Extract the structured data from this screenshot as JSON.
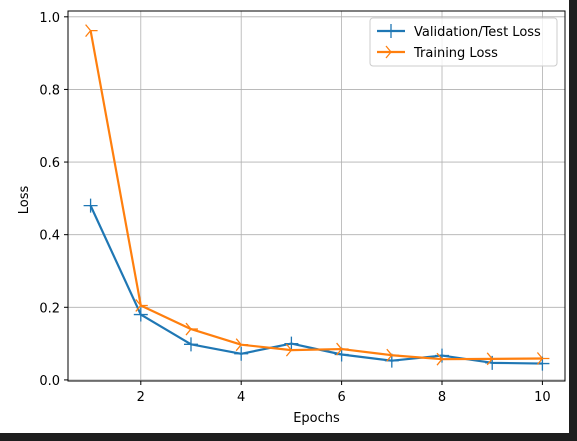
{
  "chart_data": {
    "type": "line",
    "xlabel": "Epochs",
    "ylabel": "Loss",
    "xlim": [
      0.55,
      10.45
    ],
    "ylim": [
      -0.003,
      1.016
    ],
    "x": [
      1,
      2,
      3,
      4,
      5,
      6,
      7,
      8,
      9,
      10
    ],
    "xticks": [
      "2",
      "4",
      "6",
      "8",
      "10"
    ],
    "yticks": [
      "0.0",
      "0.2",
      "0.4",
      "0.6",
      "0.8",
      "1.0"
    ],
    "grid": true,
    "legend_position": "top-right",
    "series": [
      {
        "name": "Validation/Test Loss",
        "color": "#1f77b4",
        "marker": "plus",
        "values": [
          0.48,
          0.18,
          0.098,
          0.072,
          0.1,
          0.07,
          0.053,
          0.067,
          0.047,
          0.045
        ]
      },
      {
        "name": "Training Loss",
        "color": "#ff7f0e",
        "marker": "tri_right",
        "values": [
          0.962,
          0.205,
          0.14,
          0.097,
          0.082,
          0.085,
          0.068,
          0.057,
          0.058,
          0.059
        ]
      }
    ]
  }
}
